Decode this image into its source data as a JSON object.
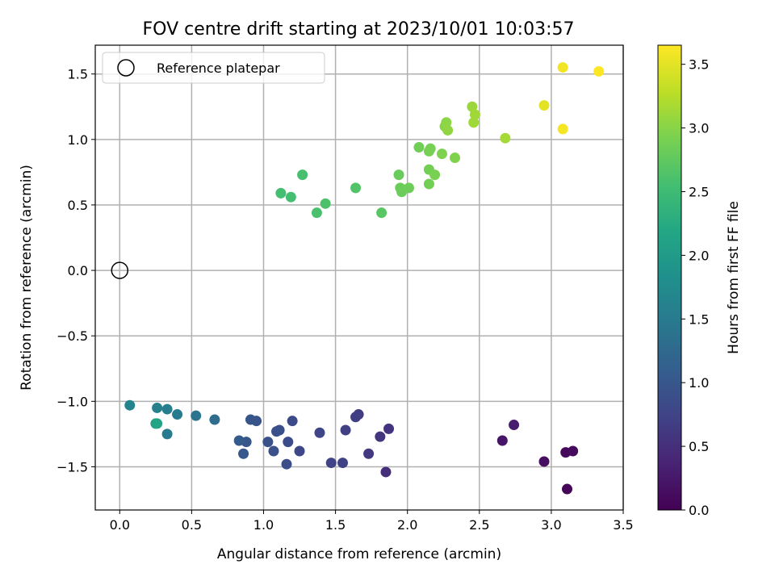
{
  "chart_data": {
    "type": "scatter",
    "title": "FOV centre drift starting at 2023/10/01 10:03:57",
    "xlabel": "Angular distance from reference (arcmin)",
    "ylabel": "Rotation from reference (arcmin)",
    "xlim": [
      -0.17,
      3.5
    ],
    "ylim": [
      -1.83,
      1.72
    ],
    "xticks": [
      0.0,
      0.5,
      1.0,
      1.5,
      2.0,
      2.5,
      3.0,
      3.5
    ],
    "xtick_labels": [
      "0.0",
      "0.5",
      "1.0",
      "1.5",
      "2.0",
      "2.5",
      "3.0",
      "3.5"
    ],
    "yticks": [
      -1.5,
      -1.0,
      -0.5,
      0.0,
      0.5,
      1.0,
      1.5
    ],
    "ytick_labels": [
      "−1.5",
      "−1.0",
      "−0.5",
      "0.0",
      "0.5",
      "1.0",
      "1.5"
    ],
    "grid": true,
    "legend": {
      "placement": "top-left",
      "entries": [
        "Reference platepar"
      ]
    },
    "reference_point": {
      "x": 0.0,
      "y": 0.0,
      "label": "Reference platepar"
    },
    "colorbar": {
      "label": "Hours from first FF file",
      "colormap": "viridis",
      "range": [
        0.0,
        3.65
      ],
      "ticks": [
        0.0,
        0.5,
        1.0,
        1.5,
        2.0,
        2.5,
        3.0,
        3.5
      ],
      "tick_labels": [
        "0.0",
        "0.5",
        "1.0",
        "1.5",
        "2.0",
        "2.5",
        "3.0",
        "3.5"
      ]
    },
    "series": [
      {
        "values": [
          {
            "x": 3.11,
            "y": -1.67,
            "c": 0.05
          },
          {
            "x": 3.1,
            "y": -1.39,
            "c": 0.08
          },
          {
            "x": 3.15,
            "y": -1.38,
            "c": 0.1
          },
          {
            "x": 2.95,
            "y": -1.46,
            "c": 0.15
          },
          {
            "x": 2.66,
            "y": -1.3,
            "c": 0.22
          },
          {
            "x": 2.74,
            "y": -1.18,
            "c": 0.3
          },
          {
            "x": 1.85,
            "y": -1.54,
            "c": 0.5
          },
          {
            "x": 1.87,
            "y": -1.21,
            "c": 0.55
          },
          {
            "x": 1.81,
            "y": -1.27,
            "c": 0.58
          },
          {
            "x": 1.73,
            "y": -1.4,
            "c": 0.62
          },
          {
            "x": 1.66,
            "y": -1.1,
            "c": 0.65
          },
          {
            "x": 1.64,
            "y": -1.12,
            "c": 0.68
          },
          {
            "x": 1.57,
            "y": -1.22,
            "c": 0.7
          },
          {
            "x": 1.55,
            "y": -1.47,
            "c": 0.72
          },
          {
            "x": 1.47,
            "y": -1.47,
            "c": 0.74
          },
          {
            "x": 1.39,
            "y": -1.24,
            "c": 0.76
          },
          {
            "x": 1.25,
            "y": -1.38,
            "c": 0.8
          },
          {
            "x": 1.2,
            "y": -1.15,
            "c": 0.82
          },
          {
            "x": 1.17,
            "y": -1.31,
            "c": 0.84
          },
          {
            "x": 1.16,
            "y": -1.48,
            "c": 0.86
          },
          {
            "x": 1.11,
            "y": -1.22,
            "c": 0.88
          },
          {
            "x": 1.09,
            "y": -1.23,
            "c": 0.9
          },
          {
            "x": 1.07,
            "y": -1.38,
            "c": 0.92
          },
          {
            "x": 1.03,
            "y": -1.31,
            "c": 0.94
          },
          {
            "x": 0.95,
            "y": -1.15,
            "c": 0.96
          },
          {
            "x": 0.91,
            "y": -1.14,
            "c": 0.98
          },
          {
            "x": 0.88,
            "y": -1.31,
            "c": 1.0
          },
          {
            "x": 0.86,
            "y": -1.4,
            "c": 1.02
          },
          {
            "x": 0.83,
            "y": -1.3,
            "c": 1.05
          },
          {
            "x": 0.66,
            "y": -1.14,
            "c": 1.3
          },
          {
            "x": 0.53,
            "y": -1.11,
            "c": 1.4
          },
          {
            "x": 0.4,
            "y": -1.1,
            "c": 1.5
          },
          {
            "x": 0.33,
            "y": -1.06,
            "c": 1.55
          },
          {
            "x": 0.33,
            "y": -1.25,
            "c": 1.5
          },
          {
            "x": 0.26,
            "y": -1.05,
            "c": 1.6
          },
          {
            "x": 0.07,
            "y": -1.03,
            "c": 1.65
          },
          {
            "x": 0.25,
            "y": -1.17,
            "c": 2.1
          },
          {
            "x": 0.26,
            "y": -1.17,
            "c": 2.15
          },
          {
            "x": 1.12,
            "y": 0.59,
            "c": 2.55
          },
          {
            "x": 1.19,
            "y": 0.56,
            "c": 2.55
          },
          {
            "x": 1.27,
            "y": 0.73,
            "c": 2.58
          },
          {
            "x": 1.37,
            "y": 0.44,
            "c": 2.6
          },
          {
            "x": 1.43,
            "y": 0.51,
            "c": 2.62
          },
          {
            "x": 1.64,
            "y": 0.63,
            "c": 2.65
          },
          {
            "x": 1.82,
            "y": 0.44,
            "c": 2.7
          },
          {
            "x": 1.94,
            "y": 0.73,
            "c": 2.8
          },
          {
            "x": 1.95,
            "y": 0.63,
            "c": 2.82
          },
          {
            "x": 1.96,
            "y": 0.6,
            "c": 2.83
          },
          {
            "x": 2.01,
            "y": 0.63,
            "c": 2.84
          },
          {
            "x": 2.08,
            "y": 0.94,
            "c": 2.86
          },
          {
            "x": 2.15,
            "y": 0.77,
            "c": 2.87
          },
          {
            "x": 2.15,
            "y": 0.66,
            "c": 2.88
          },
          {
            "x": 2.15,
            "y": 0.91,
            "c": 2.89
          },
          {
            "x": 2.16,
            "y": 0.93,
            "c": 2.9
          },
          {
            "x": 2.19,
            "y": 0.73,
            "c": 2.92
          },
          {
            "x": 2.24,
            "y": 0.89,
            "c": 2.94
          },
          {
            "x": 2.26,
            "y": 1.1,
            "c": 3.0
          },
          {
            "x": 2.27,
            "y": 1.13,
            "c": 3.02
          },
          {
            "x": 2.28,
            "y": 1.07,
            "c": 3.05
          },
          {
            "x": 2.33,
            "y": 0.86,
            "c": 2.96
          },
          {
            "x": 2.45,
            "y": 1.25,
            "c": 3.1
          },
          {
            "x": 2.46,
            "y": 1.13,
            "c": 3.12
          },
          {
            "x": 2.47,
            "y": 1.19,
            "c": 3.13
          },
          {
            "x": 2.68,
            "y": 1.01,
            "c": 3.15
          },
          {
            "x": 2.95,
            "y": 1.26,
            "c": 3.5
          },
          {
            "x": 3.08,
            "y": 1.55,
            "c": 3.58
          },
          {
            "x": 3.08,
            "y": 1.08,
            "c": 3.6
          },
          {
            "x": 3.33,
            "y": 1.52,
            "c": 3.65
          }
        ]
      }
    ]
  }
}
